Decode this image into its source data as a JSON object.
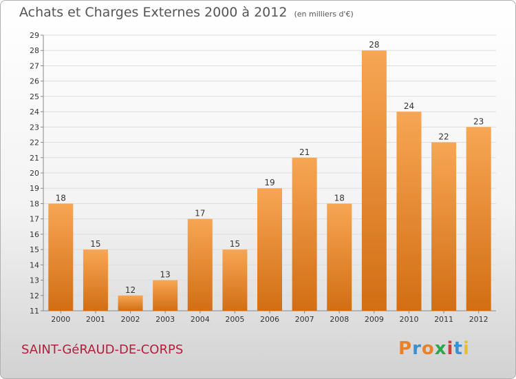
{
  "header": {
    "title": "Achats et Charges Externes 2000 à 2012",
    "subtitle": "(en milliers d'€)"
  },
  "footer": {
    "commune": "SAINT-GéRAUD-DE-CORPS",
    "logo": "Proxiti",
    "logo_colors": [
      "#e8822a",
      "#3a8fd0",
      "#e8822a",
      "#2aa84a",
      "#d03a3a",
      "#3a8fd0",
      "#e8c02a"
    ]
  },
  "colors": {
    "bar_light": "#f7a654",
    "bar_dark": "#d26e14",
    "grid": "#dddddd",
    "axis": "#888888"
  },
  "chart_data": {
    "type": "bar",
    "title": "Achats et Charges Externes 2000 à 2012",
    "subtitle": "(en milliers d'€)",
    "categories": [
      "2000",
      "2001",
      "2002",
      "2003",
      "2004",
      "2005",
      "2006",
      "2007",
      "2008",
      "2009",
      "2010",
      "2011",
      "2012"
    ],
    "values": [
      18,
      15,
      12,
      13,
      17,
      15,
      19,
      21,
      18,
      28,
      24,
      22,
      23
    ],
    "data_labels": [
      "18",
      "15",
      "12",
      "13",
      "17",
      "15",
      "19",
      "21",
      "18",
      "28",
      "24",
      "22",
      "23"
    ],
    "yticks": [
      "11",
      "12",
      "13",
      "14",
      "15",
      "16",
      "17",
      "18",
      "19",
      "20",
      "21",
      "22",
      "23",
      "24",
      "25",
      "26",
      "27",
      "28",
      "29"
    ],
    "ylim": [
      11,
      29
    ],
    "grid": true,
    "legend": "none"
  }
}
